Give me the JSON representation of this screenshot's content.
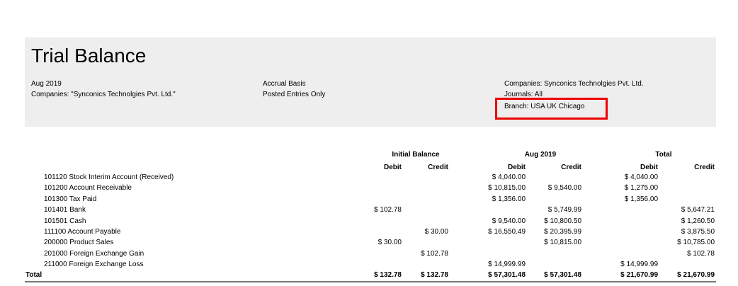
{
  "title": "Trial Balance",
  "info": {
    "col1": [
      "Aug 2019",
      "Companies: \"Synconics Technolgies Pvt. Ltd.\""
    ],
    "col2": [
      "Accrual Basis",
      "Posted Entries Only"
    ],
    "col3": [
      "Companies: Synconics Technolgies Pvt. Ltd.",
      "Journals: All",
      "Branch: USA UK Chicago"
    ]
  },
  "highlight_color": "#e00000",
  "groups": [
    "Initial Balance",
    "Aug 2019",
    "Total"
  ],
  "subheaders": [
    "Debit",
    "Credit",
    "Debit",
    "Credit",
    "Debit",
    "Credit"
  ],
  "rows": [
    {
      "name": "101120 Stock Interim Account (Received)",
      "v": [
        "",
        "",
        "$ 4,040.00",
        "",
        "$ 4,040.00",
        ""
      ]
    },
    {
      "name": "101200 Account Receivable",
      "v": [
        "",
        "",
        "$ 10,815.00",
        "$ 9,540.00",
        "$ 1,275.00",
        ""
      ]
    },
    {
      "name": "101300 Tax Paid",
      "v": [
        "",
        "",
        "$ 1,356.00",
        "",
        "$ 1,356.00",
        ""
      ]
    },
    {
      "name": "101401 Bank",
      "v": [
        "$ 102.78",
        "",
        "",
        "$ 5,749.99",
        "",
        "$ 5,647.21"
      ]
    },
    {
      "name": "101501 Cash",
      "v": [
        "",
        "",
        "$ 9,540.00",
        "$ 10,800.50",
        "",
        "$ 1,260.50"
      ]
    },
    {
      "name": "111100 Account Payable",
      "v": [
        "",
        "$ 30.00",
        "$ 16,550.49",
        "$ 20,395.99",
        "",
        "$ 3,875.50"
      ]
    },
    {
      "name": "200000 Product Sales",
      "v": [
        "$ 30.00",
        "",
        "",
        "$ 10,815.00",
        "",
        "$ 10,785.00"
      ]
    },
    {
      "name": "201000 Foreign Exchange Gain",
      "v": [
        "",
        "$ 102.78",
        "",
        "",
        "",
        "$ 102.78"
      ]
    },
    {
      "name": "211000 Foreign Exchange Loss",
      "v": [
        "",
        "",
        "$ 14,999.99",
        "",
        "$ 14,999.99",
        ""
      ]
    }
  ],
  "total": {
    "name": "Total",
    "v": [
      "$ 132.78",
      "$ 132.78",
      "$ 57,301.48",
      "$ 57,301.48",
      "$ 21,670.99",
      "$ 21,670.99"
    ]
  }
}
